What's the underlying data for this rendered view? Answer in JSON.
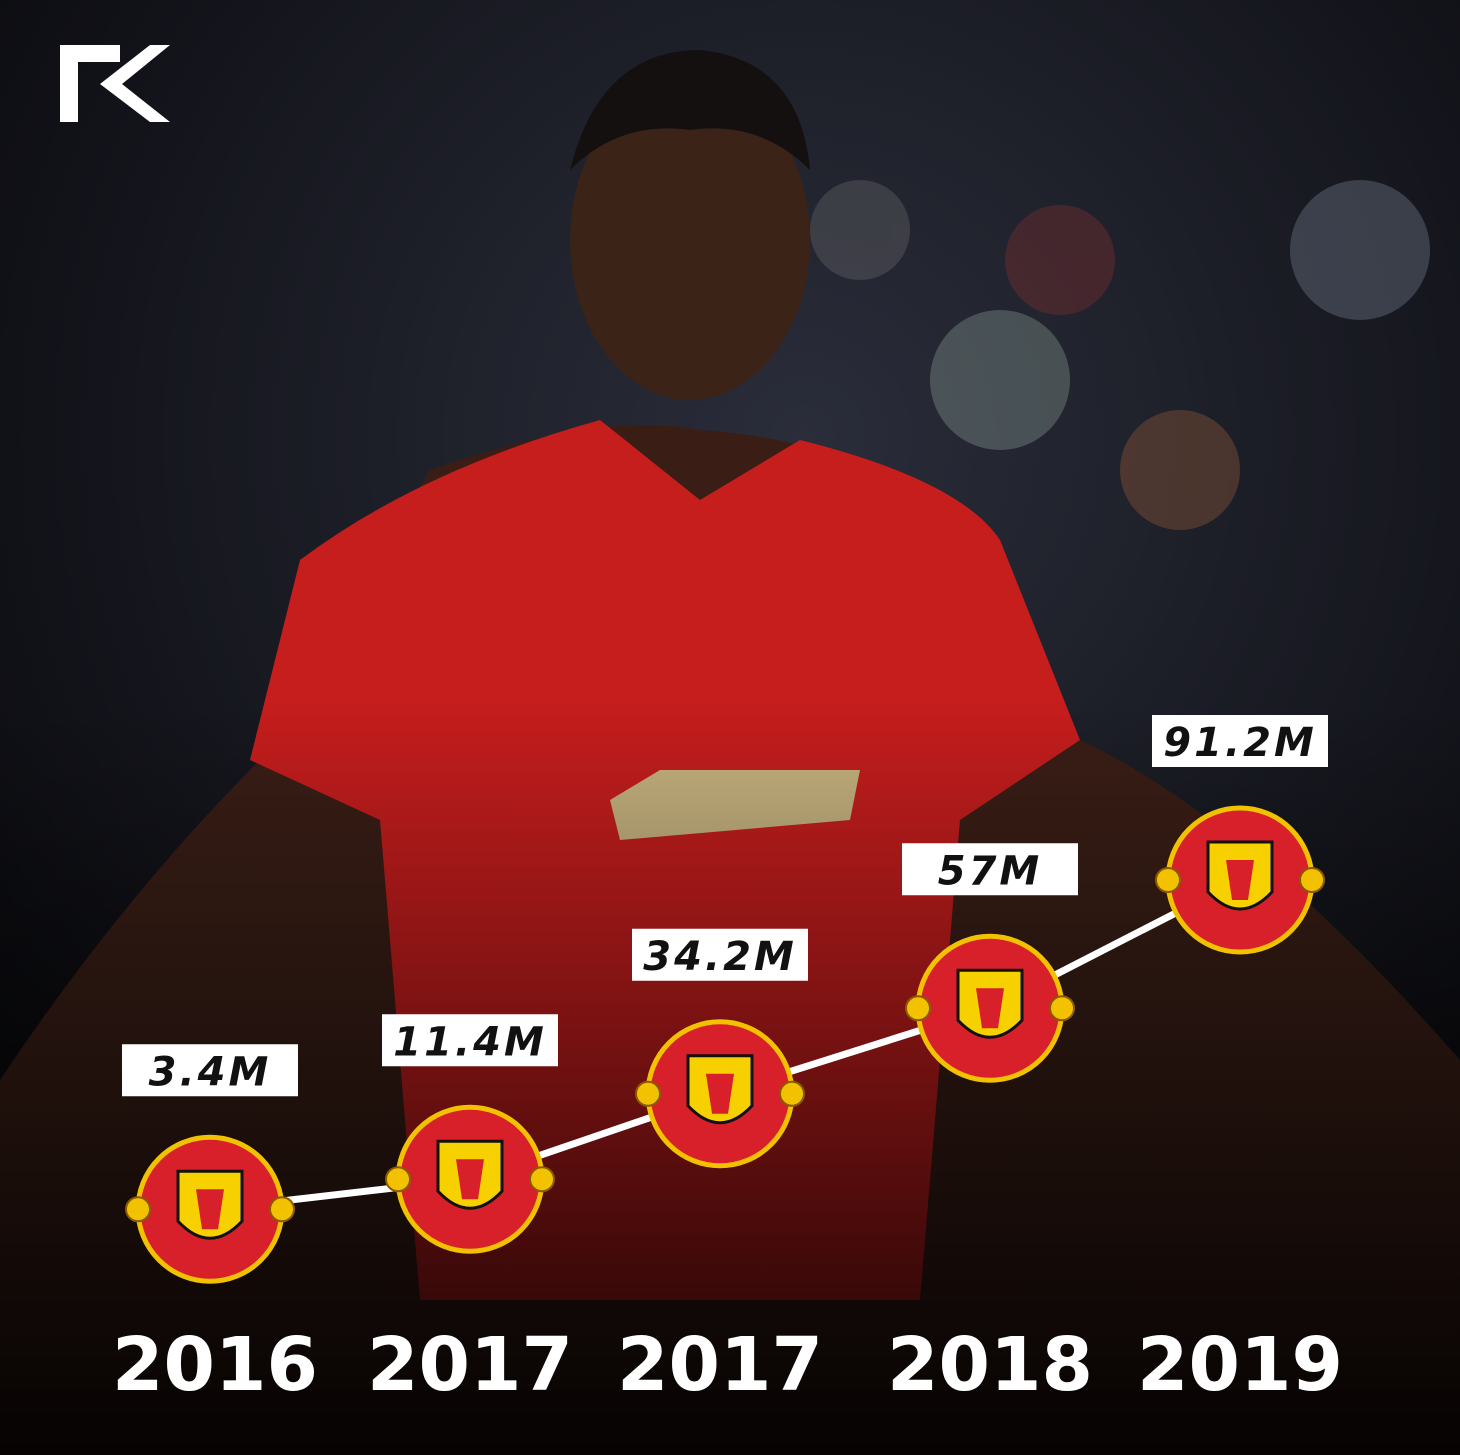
{
  "chart_data": {
    "type": "line",
    "categories": [
      "2016",
      "2017",
      "2017",
      "2018",
      "2019"
    ],
    "values": [
      3.4,
      11.4,
      34.2,
      57,
      91.2
    ],
    "value_labels": [
      "3.4M",
      "11.4M",
      "34.2M",
      "57M",
      "91.2M"
    ],
    "color": "#ffffff"
  }
}
